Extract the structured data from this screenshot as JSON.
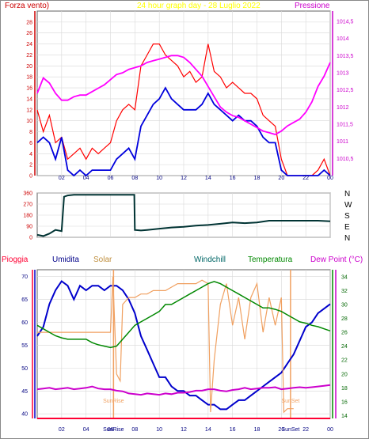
{
  "colors": {
    "bg": "#ffffff",
    "plot_border": "#606060",
    "grid": "#d8d8d8",
    "wind_axis": "#cc0000",
    "pressure_axis": "#cc00cc",
    "gust": "#ff0000",
    "wind_avg": "#0000dd",
    "pressure": "#ff00ff",
    "direction": "#003333",
    "rain": "#ff0033",
    "humidity": "#0000cc",
    "solar": "#f0a060",
    "windchill": "#006666",
    "temperature": "#008800",
    "dewpoint": "#cc00cc",
    "title": "#ffff00",
    "sun_marker": "#f0a060"
  },
  "header": {
    "left": "Forza vento)",
    "center": "24 hour graph day - 28 Luglio 2022",
    "right": "Pressione"
  },
  "bottom_legend": {
    "rain": "Pioggia",
    "humidity": "Umidita",
    "solar": "Solar",
    "windchill": "Windchill",
    "temperature": "Temperatura",
    "dewpoint": "Dew Point (°C)"
  },
  "x_ticks": [
    "02",
    "04",
    "06",
    "08",
    "10",
    "12",
    "14",
    "16",
    "18",
    "20",
    "22",
    "00"
  ],
  "chart_data": [
    {
      "type": "line",
      "x_unit": "hour",
      "xlim": [
        0,
        24
      ],
      "left_axis": {
        "ticks": [
          "0",
          "2",
          "4",
          "6",
          "8",
          "10",
          "12",
          "14",
          "16",
          "18",
          "20",
          "22",
          "24",
          "26",
          "28"
        ],
        "ylim": [
          0,
          30
        ]
      },
      "right_axis": {
        "ticks": [
          "1010,5",
          "1011",
          "1011,5",
          "1012",
          "1012,5",
          "1013",
          "1013,5",
          "1014",
          "1014,5"
        ],
        "ylim": [
          1010.0,
          1014.8
        ]
      },
      "series": [
        {
          "axis": "left",
          "x": [
            0,
            0.5,
            1,
            1.5,
            2,
            2.5,
            3,
            3.5,
            4,
            4.5,
            5,
            5.5,
            6,
            6.5,
            7,
            7.5,
            8,
            8.5,
            9,
            9.5,
            10,
            10.5,
            11,
            11.5,
            12,
            12.5,
            13,
            13.5,
            14,
            14.5,
            15,
            15.5,
            16,
            16.5,
            17,
            17.5,
            18,
            18.5,
            19,
            19.5,
            20,
            20.5,
            21,
            21.5,
            22,
            22.5,
            23,
            23.5,
            24
          ],
          "values": [
            12,
            8,
            11,
            6,
            7,
            3,
            4,
            5,
            3,
            5,
            4,
            5,
            6,
            10,
            12,
            13,
            12,
            20,
            22,
            24,
            24,
            22,
            21,
            20,
            18,
            19,
            17,
            18,
            24,
            19,
            18,
            16,
            17,
            16,
            15,
            15,
            14,
            11,
            10,
            9,
            3,
            0,
            0,
            0,
            0,
            0,
            1,
            3,
            0
          ]
        },
        {
          "axis": "left",
          "x": [
            0,
            0.5,
            1,
            1.5,
            2,
            2.5,
            3,
            3.5,
            4,
            4.5,
            5,
            5.5,
            6,
            6.5,
            7,
            7.5,
            8,
            8.5,
            9,
            9.5,
            10,
            10.5,
            11,
            11.5,
            12,
            12.5,
            13,
            13.5,
            14,
            14.5,
            15,
            15.5,
            16,
            16.5,
            17,
            17.5,
            18,
            18.5,
            19,
            19.5,
            20,
            20.5,
            21,
            21.5,
            22,
            22.5,
            23,
            23.5,
            24
          ],
          "values": [
            6,
            7,
            6,
            3,
            7,
            1,
            0,
            1,
            0,
            1,
            1,
            1,
            1,
            3,
            4,
            5,
            3,
            9,
            11,
            13,
            14,
            16,
            14,
            13,
            12,
            12,
            12,
            13,
            15,
            13,
            12,
            11,
            10,
            11,
            10,
            10,
            9,
            7,
            6,
            6,
            1,
            0,
            0,
            0,
            0,
            0,
            0,
            1,
            0
          ]
        },
        {
          "axis": "right",
          "x": [
            0,
            0.5,
            1,
            1.5,
            2,
            2.5,
            3,
            3.5,
            4,
            4.5,
            5,
            5.5,
            6,
            6.5,
            7,
            7.5,
            8,
            8.5,
            9,
            9.5,
            10,
            10.5,
            11,
            11.5,
            12,
            12.5,
            13,
            13.5,
            14,
            14.5,
            15,
            15.5,
            16,
            16.5,
            17,
            17.5,
            18,
            18.5,
            19,
            19.5,
            20,
            20.5,
            21,
            21.5,
            22,
            22.5,
            23,
            23.5,
            24
          ],
          "values": [
            1012.4,
            1012.85,
            1012.7,
            1012.4,
            1012.2,
            1012.2,
            1012.3,
            1012.35,
            1012.35,
            1012.45,
            1012.55,
            1012.65,
            1012.8,
            1012.95,
            1013.0,
            1013.1,
            1013.15,
            1013.2,
            1013.3,
            1013.35,
            1013.4,
            1013.45,
            1013.5,
            1013.5,
            1013.45,
            1013.3,
            1013.1,
            1012.9,
            1012.6,
            1012.3,
            1012.0,
            1011.85,
            1011.75,
            1011.7,
            1011.6,
            1011.5,
            1011.4,
            1011.3,
            1011.25,
            1011.2,
            1011.3,
            1011.45,
            1011.55,
            1011.65,
            1011.85,
            1012.15,
            1012.6,
            1012.9,
            1013.3
          ]
        }
      ]
    },
    {
      "type": "line",
      "x_unit": "hour",
      "xlim": [
        0,
        24
      ],
      "left_axis": {
        "ticks": [
          "0",
          "90",
          "180",
          "270",
          "360"
        ],
        "ylim": [
          0,
          360
        ]
      },
      "right_axis": {
        "ticks": [
          "N",
          "E",
          "S",
          "W",
          "N"
        ]
      },
      "series": [
        {
          "x": [
            0,
            0.5,
            1,
            1.5,
            2,
            2.2,
            2.5,
            3,
            4,
            5,
            6,
            7,
            7.95,
            8,
            8.5,
            9,
            10,
            11,
            12,
            13,
            14,
            15,
            16,
            17,
            18,
            19,
            20,
            21,
            22,
            23,
            24
          ],
          "values": [
            20,
            10,
            30,
            60,
            50,
            330,
            340,
            345,
            345,
            345,
            345,
            345,
            345,
            60,
            55,
            60,
            70,
            80,
            85,
            95,
            100,
            110,
            120,
            115,
            120,
            135,
            135,
            135,
            135,
            135,
            130
          ]
        }
      ]
    },
    {
      "type": "line",
      "x_unit": "hour",
      "xlim": [
        0,
        24
      ],
      "left_axis": {
        "ticks": [
          "40",
          "45",
          "50",
          "55",
          "60",
          "65",
          "70"
        ],
        "ylim": [
          39,
          71.5
        ]
      },
      "right_axis": {
        "ticks": [
          "14",
          "16",
          "18",
          "20",
          "22",
          "24",
          "26",
          "28",
          "30",
          "32",
          "34"
        ],
        "ylim": [
          13.6,
          35
        ]
      },
      "annotations": [
        {
          "text": "SunRise",
          "x": 6.25
        },
        {
          "text": "SunSet",
          "x": 20.75
        }
      ],
      "series": [
        {
          "axis": "left",
          "x": [
            0,
            0.5,
            1,
            1.5,
            2,
            2.5,
            3,
            3.5,
            4,
            4.5,
            5,
            5.5,
            6,
            6.5,
            7,
            7.5,
            8,
            8.5,
            9,
            9.5,
            10,
            10.5,
            11,
            11.5,
            12,
            12.5,
            13,
            13.5,
            14,
            14.5,
            15,
            15.5,
            16,
            16.5,
            17,
            17.5,
            18,
            18.5,
            19,
            19.5,
            20,
            20.5,
            21,
            21.5,
            22,
            22.5,
            23,
            23.5,
            24
          ],
          "values": [
            57,
            59,
            64,
            67,
            69,
            68,
            65,
            68,
            67,
            68,
            68,
            67,
            68,
            68,
            67,
            65,
            62,
            57,
            54,
            51,
            48,
            48,
            46,
            45,
            45,
            44,
            44,
            43,
            42,
            42,
            41,
            41,
            42,
            43,
            43,
            44,
            45,
            46,
            47,
            48,
            49,
            51,
            53,
            56,
            59,
            60,
            62,
            63,
            64
          ]
        },
        {
          "axis": "right",
          "x": [
            0,
            0.5,
            1,
            1.5,
            2,
            2.5,
            3,
            3.5,
            4,
            4.5,
            5,
            5.5,
            6,
            6.2,
            6.5,
            6.8,
            7,
            7.5,
            8,
            8.5,
            9,
            9.5,
            10,
            10.5,
            11,
            11.5,
            12,
            12.5,
            13,
            13.5,
            14,
            14.2,
            14.5,
            15,
            15.5,
            16,
            16.5,
            17,
            17.5,
            18,
            18.5,
            19,
            19.5,
            20,
            20.2,
            20.5,
            21
          ],
          "values": [
            26,
            26,
            26,
            26,
            26,
            26,
            26,
            26,
            26,
            26,
            26,
            26,
            26,
            34,
            20,
            19,
            30,
            31,
            31,
            31.5,
            31.5,
            32,
            32,
            32,
            32.5,
            33,
            33,
            33,
            33,
            33.5,
            33,
            14.5,
            22,
            30,
            33,
            27,
            31,
            25,
            31,
            33,
            26,
            31,
            27,
            31,
            14.5,
            15,
            15
          ]
        },
        {
          "axis": "right",
          "x": [
            0,
            0.5,
            1,
            1.5,
            2,
            2.5,
            3,
            3.5,
            4,
            4.5,
            5,
            5.5,
            6,
            6.5,
            7,
            7.5,
            8,
            8.5,
            9,
            9.5,
            10,
            10.5,
            11,
            11.5,
            12,
            12.5,
            13,
            13.5,
            14,
            14.5,
            15,
            15.5,
            16,
            16.5,
            17,
            17.5,
            18,
            18.5,
            19,
            19.5,
            20,
            20.5,
            21,
            21.5,
            22,
            22.5,
            23,
            23.5,
            24
          ],
          "values": [
            27,
            26.5,
            26,
            25.5,
            25.2,
            25,
            25,
            25,
            25,
            24.5,
            24.2,
            24,
            23.8,
            24,
            25,
            26,
            27,
            27.5,
            28,
            28.5,
            29,
            30,
            30,
            30.5,
            31,
            31.5,
            32,
            32.5,
            33,
            33.3,
            33,
            32.5,
            32,
            31.5,
            31,
            30.5,
            30,
            29.5,
            29.5,
            29.3,
            29,
            28.5,
            28,
            27.5,
            27.3,
            27,
            26.8,
            26.5,
            26.2
          ]
        },
        {
          "axis": "right",
          "x": [
            0,
            0.5,
            1,
            1.5,
            2,
            2.5,
            3,
            3.5,
            4,
            4.5,
            5,
            5.5,
            6,
            6.5,
            7,
            7.5,
            8,
            8.5,
            9,
            9.5,
            10,
            10.5,
            11,
            11.5,
            12,
            12.5,
            13,
            13.5,
            14,
            14.5,
            15,
            15.5,
            16,
            16.5,
            17,
            17.5,
            18,
            18.5,
            19,
            19.5,
            20,
            20.5,
            21,
            21.5,
            22,
            22.5,
            23,
            23.5,
            24
          ],
          "values": [
            17.8,
            17.9,
            18,
            17.8,
            17.9,
            18,
            17.8,
            17.9,
            18,
            18.2,
            17.9,
            17.8,
            17.8,
            17.6,
            17.5,
            17.2,
            17.1,
            17,
            17.2,
            17.1,
            17,
            17.2,
            17.1,
            17.3,
            17.3,
            17.4,
            17.6,
            17.6,
            17.8,
            17.8,
            17.6,
            17.5,
            17.7,
            17.8,
            18,
            17.8,
            17.9,
            18,
            18,
            18.1,
            17.8,
            17.9,
            18,
            18.1,
            18,
            18.1,
            18.2,
            18.3,
            18.4
          ]
        },
        {
          "axis": "left",
          "x": [
            0,
            24
          ],
          "values": [
            39,
            39
          ]
        }
      ]
    }
  ]
}
